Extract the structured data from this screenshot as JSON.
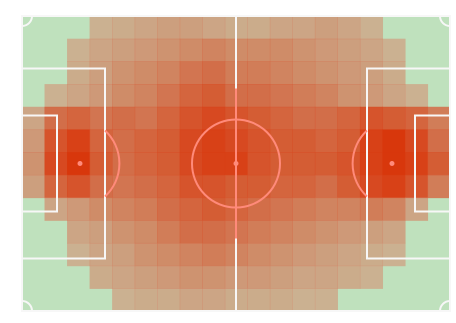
{
  "chart_data": {
    "type": "heatmap",
    "grid": {
      "cols": 19,
      "rows": 13
    },
    "colors": {
      "background": "#ffffff",
      "pitch": "#bfe1bd",
      "lines": "#f7f7f7",
      "center_lines": "#ff8a7a",
      "heat_low": "#cfae94",
      "heat_high": "#d8370c"
    },
    "values": [
      [
        0,
        0,
        0,
        0.2,
        0.25,
        0.3,
        0.35,
        0.35,
        0.3,
        0.25,
        0.25,
        0.3,
        0.3,
        0.35,
        0.3,
        0.2,
        0,
        0,
        0
      ],
      [
        0,
        0,
        0.2,
        0.3,
        0.35,
        0.4,
        0.45,
        0.5,
        0.55,
        0.5,
        0.5,
        0.5,
        0.45,
        0.4,
        0.35,
        0.3,
        0.2,
        0,
        0
      ],
      [
        0,
        0,
        0.25,
        0.35,
        0.45,
        0.5,
        0.55,
        0.65,
        0.7,
        0.6,
        0.6,
        0.55,
        0.5,
        0.45,
        0.4,
        0.35,
        0.25,
        0,
        0
      ],
      [
        0,
        0.2,
        0.3,
        0.4,
        0.5,
        0.55,
        0.65,
        0.75,
        0.8,
        0.7,
        0.7,
        0.65,
        0.6,
        0.55,
        0.45,
        0.4,
        0.3,
        0.2,
        0
      ],
      [
        0.3,
        0.7,
        0.75,
        0.65,
        0.7,
        0.65,
        0.75,
        0.85,
        0.9,
        0.85,
        0.8,
        0.75,
        0.7,
        0.7,
        0.75,
        0.85,
        0.8,
        0.75,
        0.6
      ],
      [
        0.4,
        0.85,
        0.95,
        0.75,
        0.7,
        0.75,
        0.8,
        0.9,
        0.95,
        0.9,
        0.85,
        0.8,
        0.8,
        0.75,
        0.8,
        0.95,
        1.0,
        0.9,
        0.7
      ],
      [
        0.45,
        0.9,
        1.0,
        0.8,
        0.7,
        0.75,
        0.8,
        0.9,
        0.95,
        0.95,
        0.85,
        0.8,
        0.8,
        0.8,
        0.85,
        0.95,
        1.0,
        0.95,
        0.8
      ],
      [
        0.35,
        0.75,
        0.85,
        0.7,
        0.65,
        0.7,
        0.75,
        0.85,
        0.85,
        0.8,
        0.8,
        0.75,
        0.75,
        0.7,
        0.8,
        0.9,
        0.95,
        0.85,
        0.6
      ],
      [
        0,
        0.3,
        0.4,
        0.5,
        0.55,
        0.6,
        0.7,
        0.75,
        0.8,
        0.75,
        0.7,
        0.65,
        0.6,
        0.55,
        0.55,
        0.6,
        0.55,
        0.3,
        0
      ],
      [
        0,
        0,
        0.3,
        0.35,
        0.45,
        0.5,
        0.6,
        0.7,
        0.7,
        0.65,
        0.6,
        0.55,
        0.5,
        0.45,
        0.4,
        0.35,
        0.3,
        0,
        0
      ],
      [
        0,
        0,
        0.2,
        0.3,
        0.35,
        0.45,
        0.5,
        0.55,
        0.6,
        0.55,
        0.5,
        0.45,
        0.4,
        0.35,
        0.3,
        0.25,
        0.2,
        0,
        0
      ],
      [
        0,
        0,
        0,
        0.25,
        0.3,
        0.35,
        0.4,
        0.45,
        0.45,
        0.4,
        0.4,
        0.35,
        0.3,
        0.3,
        0.25,
        0.2,
        0,
        0,
        0
      ],
      [
        0,
        0,
        0,
        0,
        0.2,
        0.25,
        0.25,
        0.3,
        0.3,
        0.25,
        0.25,
        0.25,
        0.2,
        0.2,
        0,
        0,
        0,
        0,
        0
      ]
    ]
  }
}
